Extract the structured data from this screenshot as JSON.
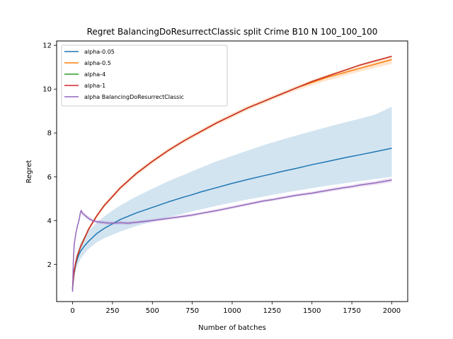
{
  "chart_data": {
    "type": "line",
    "title": "Regret BalancingDoResurrectClassic split Crime B10 N 100_100_100",
    "xlabel": "Number of batches",
    "ylabel": "Regret",
    "xlim": [
      -100,
      2100
    ],
    "ylim": [
      0.3,
      12.2
    ],
    "xticks": [
      0,
      250,
      500,
      750,
      1000,
      1250,
      1500,
      1750,
      2000
    ],
    "yticks": [
      2,
      4,
      6,
      8,
      10,
      12
    ],
    "legend_position": "upper left",
    "grid": false,
    "series": [
      {
        "name": "alpha-0.05",
        "color": "#1f77b4",
        "x": [
          0,
          5,
          10,
          20,
          30,
          40,
          50,
          75,
          100,
          150,
          200,
          250,
          300,
          400,
          500,
          600,
          700,
          750,
          800,
          900,
          1000,
          1100,
          1200,
          1250,
          1300,
          1400,
          1500,
          1600,
          1700,
          1750,
          1800,
          1900,
          2000
        ],
        "y": [
          0.85,
          1.3,
          1.6,
          2.0,
          2.25,
          2.45,
          2.6,
          2.85,
          3.05,
          3.4,
          3.65,
          3.85,
          4.05,
          4.35,
          4.6,
          4.85,
          5.08,
          5.18,
          5.3,
          5.5,
          5.7,
          5.88,
          6.05,
          6.13,
          6.22,
          6.38,
          6.55,
          6.7,
          6.86,
          6.93,
          7.0,
          7.15,
          7.3
        ],
        "band_lower": [
          0.7,
          1.1,
          1.4,
          1.75,
          1.95,
          2.1,
          2.25,
          2.5,
          2.7,
          3.0,
          3.2,
          3.35,
          3.5,
          3.75,
          3.95,
          4.15,
          4.33,
          4.42,
          4.5,
          4.67,
          4.82,
          4.97,
          5.1,
          5.17,
          5.23,
          5.36,
          5.48,
          5.6,
          5.7,
          5.75,
          5.8,
          5.9,
          6.0
        ],
        "band_upper": [
          1.0,
          1.5,
          1.8,
          2.25,
          2.55,
          2.8,
          3.0,
          3.3,
          3.55,
          3.9,
          4.2,
          4.45,
          4.7,
          5.1,
          5.45,
          5.8,
          6.1,
          6.25,
          6.4,
          6.7,
          6.95,
          7.2,
          7.45,
          7.56,
          7.67,
          7.88,
          8.08,
          8.28,
          8.47,
          8.56,
          8.65,
          8.85,
          9.2
        ]
      },
      {
        "name": "alpha-0.5",
        "color": "#ff7f0e",
        "x": [
          0,
          5,
          10,
          20,
          30,
          40,
          50,
          75,
          100,
          150,
          200,
          250,
          300,
          400,
          500,
          600,
          700,
          750,
          800,
          900,
          1000,
          1100,
          1200,
          1250,
          1300,
          1400,
          1500,
          1600,
          1700,
          1750,
          1800,
          1900,
          2000
        ],
        "y": [
          0.9,
          1.4,
          1.7,
          2.1,
          2.4,
          2.6,
          2.8,
          3.2,
          3.6,
          4.2,
          4.7,
          5.1,
          5.5,
          6.15,
          6.7,
          7.2,
          7.65,
          7.85,
          8.05,
          8.45,
          8.8,
          9.15,
          9.45,
          9.6,
          9.75,
          10.05,
          10.3,
          10.55,
          10.75,
          10.85,
          10.95,
          11.15,
          11.35
        ],
        "band_lower": [
          0.8,
          1.3,
          1.6,
          2.0,
          2.3,
          2.5,
          2.7,
          3.1,
          3.5,
          4.1,
          4.6,
          5.0,
          5.4,
          6.05,
          6.6,
          7.1,
          7.55,
          7.75,
          7.95,
          8.35,
          8.7,
          9.05,
          9.35,
          9.5,
          9.65,
          9.93,
          10.17,
          10.4,
          10.6,
          10.7,
          10.8,
          10.98,
          11.15
        ],
        "band_upper": [
          1.0,
          1.5,
          1.8,
          2.2,
          2.5,
          2.7,
          2.9,
          3.3,
          3.7,
          4.3,
          4.8,
          5.2,
          5.6,
          6.25,
          6.8,
          7.3,
          7.75,
          7.95,
          8.15,
          8.55,
          8.9,
          9.25,
          9.55,
          9.7,
          9.85,
          10.15,
          10.42,
          10.68,
          10.9,
          11.0,
          11.1,
          11.3,
          11.55
        ]
      },
      {
        "name": "alpha-4",
        "color": "#2ca02c",
        "x": [
          0,
          5,
          10,
          20,
          30,
          40,
          50,
          75,
          100,
          150,
          200,
          250,
          300,
          400,
          500,
          600,
          700,
          750,
          800,
          900,
          1000,
          1100,
          1200,
          1250,
          1300,
          1400,
          1500,
          1600,
          1700,
          1750,
          1800,
          1900,
          2000
        ],
        "y": [
          0.9,
          1.4,
          1.7,
          2.1,
          2.4,
          2.6,
          2.8,
          3.2,
          3.6,
          4.2,
          4.7,
          5.1,
          5.5,
          6.15,
          6.7,
          7.2,
          7.65,
          7.85,
          8.05,
          8.45,
          8.8,
          9.15,
          9.45,
          9.6,
          9.75,
          10.05,
          10.35,
          10.6,
          10.85,
          10.97,
          11.1,
          11.3,
          11.5
        ]
      },
      {
        "name": "alpha-1",
        "color": "#d62728",
        "x": [
          0,
          5,
          10,
          20,
          30,
          40,
          50,
          75,
          100,
          150,
          200,
          250,
          300,
          400,
          500,
          600,
          700,
          750,
          800,
          900,
          1000,
          1100,
          1200,
          1250,
          1300,
          1400,
          1500,
          1600,
          1700,
          1750,
          1800,
          1900,
          2000
        ],
        "y": [
          0.9,
          1.4,
          1.7,
          2.1,
          2.4,
          2.6,
          2.8,
          3.2,
          3.6,
          4.2,
          4.7,
          5.1,
          5.5,
          6.15,
          6.7,
          7.2,
          7.65,
          7.85,
          8.05,
          8.45,
          8.8,
          9.15,
          9.45,
          9.6,
          9.75,
          10.05,
          10.35,
          10.6,
          10.85,
          10.97,
          11.1,
          11.3,
          11.5
        ]
      },
      {
        "name": "alpha BalancingDoResurrectClassic",
        "color": "#9467bd",
        "x": [
          0,
          5,
          10,
          20,
          30,
          40,
          50,
          55,
          60,
          75,
          100,
          125,
          150,
          200,
          250,
          300,
          350,
          400,
          500,
          600,
          700,
          750,
          800,
          900,
          1000,
          1100,
          1200,
          1250,
          1300,
          1400,
          1500,
          1600,
          1700,
          1750,
          1800,
          1900,
          2000
        ],
        "y": [
          0.75,
          2.2,
          2.9,
          3.4,
          3.75,
          4.0,
          4.4,
          4.45,
          4.35,
          4.25,
          4.1,
          4.0,
          3.95,
          3.9,
          3.88,
          3.9,
          3.88,
          3.92,
          4.0,
          4.1,
          4.2,
          4.25,
          4.32,
          4.45,
          4.6,
          4.75,
          4.9,
          4.95,
          5.02,
          5.15,
          5.25,
          5.38,
          5.5,
          5.55,
          5.62,
          5.72,
          5.85
        ],
        "band_lower": [
          0.7,
          2.1,
          2.8,
          3.3,
          3.65,
          3.9,
          4.3,
          4.35,
          4.25,
          4.15,
          4.0,
          3.92,
          3.87,
          3.82,
          3.8,
          3.82,
          3.8,
          3.85,
          3.93,
          4.03,
          4.13,
          4.18,
          4.25,
          4.38,
          4.53,
          4.68,
          4.83,
          4.88,
          4.95,
          5.08,
          5.18,
          5.3,
          5.42,
          5.47,
          5.53,
          5.63,
          5.75
        ],
        "band_upper": [
          0.8,
          2.3,
          3.0,
          3.5,
          3.85,
          4.1,
          4.5,
          4.55,
          4.45,
          4.35,
          4.2,
          4.08,
          4.03,
          3.98,
          3.96,
          3.98,
          3.96,
          3.99,
          4.07,
          4.17,
          4.27,
          4.32,
          4.39,
          4.52,
          4.67,
          4.82,
          4.97,
          5.02,
          5.09,
          5.22,
          5.32,
          5.46,
          5.58,
          5.63,
          5.71,
          5.81,
          5.95
        ]
      }
    ]
  }
}
